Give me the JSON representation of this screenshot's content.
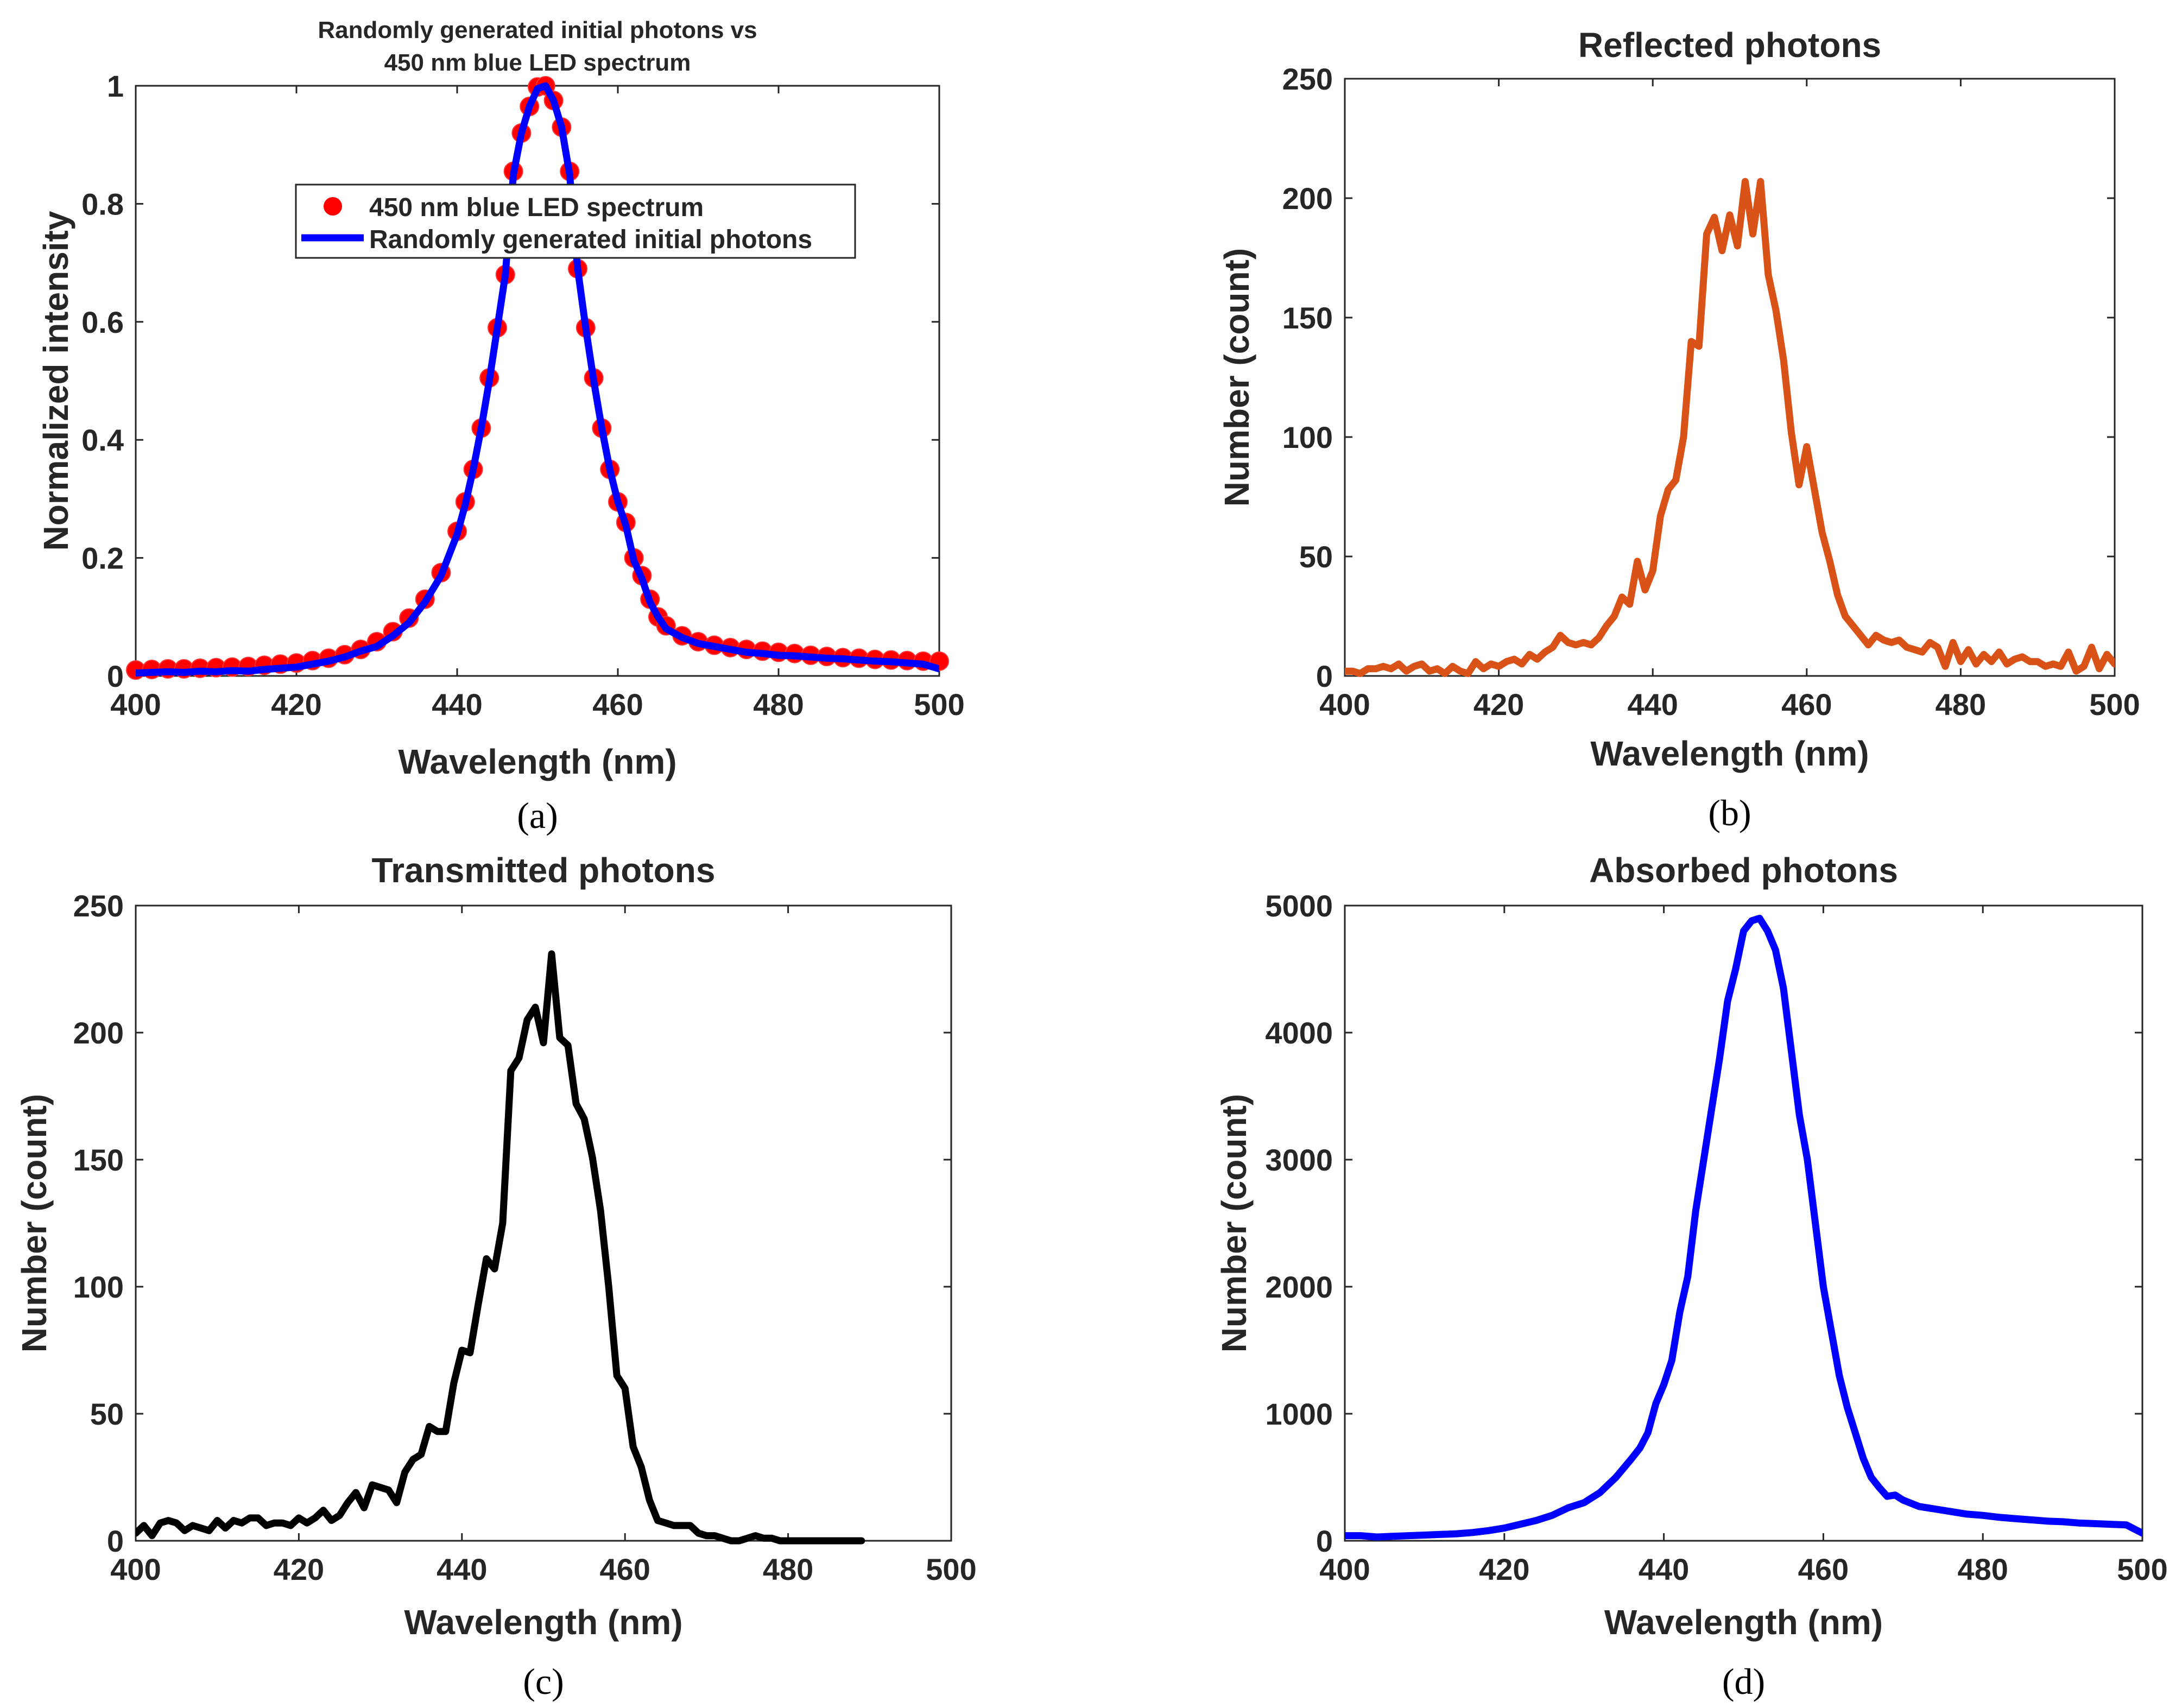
{
  "chart_data": [
    {
      "panel": "(a)",
      "type": "line",
      "title_line1": "Randomly generated initial photons vs",
      "title_line2": "450 nm blue LED spectrum",
      "xlabel": "Wavelength (nm)",
      "ylabel": "Normalized intensity",
      "xlim": [
        400,
        500
      ],
      "ylim": [
        0,
        1
      ],
      "xticks": [
        400,
        420,
        440,
        460,
        480,
        500
      ],
      "yticks": [
        0,
        0.2,
        0.4,
        0.6,
        0.8,
        1
      ],
      "ytick_labels": [
        "0",
        "0.2",
        "0.4",
        "0.6",
        "0.8",
        "1"
      ],
      "grid": false,
      "legend_position": "upper-center",
      "series": [
        {
          "name": "450 nm blue LED spectrum",
          "style": "markers",
          "color": "#ff0000",
          "x": [
            400,
            402,
            404,
            406,
            408,
            410,
            412,
            414,
            416,
            418,
            420,
            422,
            424,
            426,
            428,
            430,
            432,
            434,
            436,
            438,
            440,
            441,
            442,
            443,
            444,
            445,
            446,
            447,
            448,
            449,
            450,
            451,
            452,
            453,
            454,
            455,
            456,
            457,
            458,
            459,
            460,
            461,
            462,
            463,
            464,
            465,
            466,
            468,
            470,
            472,
            474,
            476,
            478,
            480,
            482,
            484,
            486,
            488,
            490,
            492,
            494,
            496,
            498,
            500
          ],
          "y": [
            0.01,
            0.011,
            0.012,
            0.012,
            0.013,
            0.014,
            0.015,
            0.016,
            0.018,
            0.02,
            0.022,
            0.026,
            0.03,
            0.036,
            0.045,
            0.058,
            0.075,
            0.098,
            0.13,
            0.175,
            0.245,
            0.295,
            0.35,
            0.42,
            0.505,
            0.59,
            0.68,
            0.855,
            0.92,
            0.965,
            0.998,
            1.0,
            0.975,
            0.93,
            0.855,
            0.69,
            0.59,
            0.505,
            0.42,
            0.35,
            0.295,
            0.26,
            0.2,
            0.17,
            0.13,
            0.1,
            0.085,
            0.068,
            0.058,
            0.052,
            0.048,
            0.045,
            0.042,
            0.04,
            0.038,
            0.035,
            0.033,
            0.031,
            0.03,
            0.028,
            0.027,
            0.026,
            0.025,
            0.025
          ]
        },
        {
          "name": "Randomly generated initial photons",
          "style": "line",
          "color": "#0000ff",
          "x": [
            400,
            402,
            404,
            406,
            408,
            410,
            412,
            414,
            416,
            418,
            420,
            422,
            424,
            426,
            428,
            430,
            432,
            434,
            436,
            438,
            440,
            441,
            442,
            443,
            444,
            445,
            446,
            447,
            448,
            449,
            450,
            451,
            452,
            453,
            454,
            455,
            456,
            457,
            458,
            459,
            460,
            461,
            462,
            463,
            464,
            465,
            466,
            468,
            470,
            472,
            474,
            476,
            478,
            480,
            482,
            484,
            486,
            488,
            490,
            492,
            494,
            496,
            498,
            500
          ],
          "y": [
            0.005,
            0.006,
            0.007,
            0.006,
            0.008,
            0.007,
            0.009,
            0.008,
            0.011,
            0.013,
            0.015,
            0.02,
            0.025,
            0.032,
            0.042,
            0.05,
            0.068,
            0.09,
            0.125,
            0.17,
            0.24,
            0.29,
            0.35,
            0.42,
            0.5,
            0.59,
            0.68,
            0.85,
            0.92,
            0.965,
            0.995,
            1.0,
            0.975,
            0.93,
            0.85,
            0.69,
            0.59,
            0.5,
            0.42,
            0.35,
            0.295,
            0.255,
            0.195,
            0.165,
            0.125,
            0.1,
            0.08,
            0.065,
            0.055,
            0.05,
            0.045,
            0.04,
            0.038,
            0.035,
            0.034,
            0.032,
            0.03,
            0.029,
            0.027,
            0.025,
            0.024,
            0.022,
            0.02,
            0.012
          ]
        }
      ]
    },
    {
      "panel": "(b)",
      "type": "line",
      "title": "Reflected photons",
      "xlabel": "Wavelength (nm)",
      "ylabel": "Number (count)",
      "xlim": [
        400,
        500
      ],
      "ylim": [
        0,
        250
      ],
      "xticks": [
        400,
        420,
        440,
        460,
        480,
        500
      ],
      "yticks": [
        0,
        50,
        100,
        150,
        200,
        250
      ],
      "grid": false,
      "series": [
        {
          "name": "Reflected photons",
          "color": "#d95319",
          "x": [
            400,
            401,
            402,
            403,
            404,
            405,
            406,
            407,
            408,
            409,
            410,
            411,
            412,
            413,
            414,
            415,
            416,
            417,
            418,
            419,
            420,
            421,
            422,
            423,
            424,
            425,
            426,
            427,
            428,
            429,
            430,
            431,
            432,
            433,
            434,
            435,
            436,
            437,
            438,
            439,
            440,
            441,
            442,
            443,
            444,
            445,
            446,
            447,
            448,
            449,
            450,
            451,
            452,
            453,
            454,
            455,
            456,
            457,
            458,
            459,
            460,
            461,
            462,
            463,
            464,
            465,
            466,
            467,
            468,
            469,
            470,
            471,
            472,
            473,
            474,
            475,
            476,
            477,
            478,
            479,
            480,
            481,
            482,
            483,
            484,
            485,
            486,
            487,
            488,
            489,
            490,
            491,
            492,
            493,
            494,
            495,
            496,
            497,
            498,
            499,
            500
          ],
          "y": [
            2,
            2,
            1,
            3,
            3,
            4,
            3,
            5,
            2,
            4,
            5,
            2,
            3,
            1,
            4,
            2,
            1,
            6,
            3,
            5,
            4,
            6,
            7,
            5,
            9,
            7,
            10,
            12,
            17,
            14,
            13,
            14,
            13,
            16,
            21,
            25,
            33,
            30,
            48,
            36,
            44,
            67,
            78,
            82,
            100,
            140,
            138,
            185,
            192,
            178,
            193,
            180,
            207,
            185,
            207,
            168,
            153,
            132,
            102,
            80,
            96,
            78,
            60,
            48,
            34,
            25,
            21,
            17,
            13,
            17,
            15,
            14,
            15,
            12,
            11,
            10,
            14,
            12,
            4,
            14,
            6,
            11,
            5,
            9,
            6,
            10,
            5,
            7,
            8,
            6,
            6,
            4,
            5,
            4,
            10,
            2,
            4,
            12,
            3,
            9,
            5
          ]
        }
      ]
    },
    {
      "panel": "(c)",
      "type": "line",
      "title": "Transmitted photons",
      "xlabel": "Wavelength (nm)",
      "ylabel": "Number (count)",
      "xlim": [
        400,
        500
      ],
      "ylim": [
        0,
        250
      ],
      "xticks": [
        400,
        420,
        440,
        460,
        480,
        500
      ],
      "yticks": [
        0,
        50,
        100,
        150,
        200,
        250
      ],
      "grid": false,
      "series": [
        {
          "name": "Transmitted photons",
          "color": "#000000",
          "x": [
            400,
            401,
            402,
            403,
            404,
            405,
            406,
            407,
            408,
            409,
            410,
            411,
            412,
            413,
            414,
            415,
            416,
            417,
            418,
            419,
            420,
            421,
            422,
            423,
            424,
            425,
            426,
            427,
            428,
            429,
            430,
            431,
            432,
            433,
            434,
            435,
            436,
            437,
            438,
            439,
            440,
            441,
            442,
            443,
            444,
            445,
            446,
            447,
            448,
            449,
            450,
            451,
            452,
            453,
            454,
            455,
            456,
            457,
            458,
            459,
            460,
            461,
            462,
            463,
            464,
            465,
            466,
            467,
            468,
            469,
            470,
            471,
            472,
            473,
            474,
            475,
            476,
            477,
            478,
            479,
            480,
            482,
            484,
            486,
            488,
            489
          ],
          "y": [
            3,
            6,
            2,
            7,
            8,
            7,
            4,
            6,
            5,
            4,
            8,
            5,
            8,
            7,
            9,
            9,
            6,
            7,
            7,
            6,
            9,
            7,
            9,
            12,
            8,
            10,
            15,
            19,
            13,
            22,
            21,
            20,
            15,
            27,
            32,
            34,
            45,
            43,
            43,
            62,
            75,
            74,
            93,
            111,
            107,
            125,
            185,
            190,
            205,
            210,
            196,
            231,
            198,
            195,
            172,
            166,
            151,
            130,
            100,
            65,
            60,
            37,
            29,
            16,
            8,
            7,
            6,
            6,
            6,
            3,
            2,
            2,
            1,
            0,
            0,
            1,
            2,
            1,
            1,
            0,
            0,
            0,
            0,
            0,
            0,
            0
          ]
        }
      ]
    },
    {
      "panel": "(d)",
      "type": "line",
      "title": "Absorbed photons",
      "xlabel": "Wavelength (nm)",
      "ylabel": "Number (count)",
      "xlim": [
        400,
        500
      ],
      "ylim": [
        0,
        5000
      ],
      "xticks": [
        400,
        420,
        440,
        460,
        480,
        500
      ],
      "yticks": [
        0,
        1000,
        2000,
        3000,
        4000,
        5000
      ],
      "grid": false,
      "series": [
        {
          "name": "Absorbed photons",
          "color": "#0000ff",
          "x": [
            400,
            402,
            404,
            406,
            408,
            410,
            412,
            414,
            416,
            418,
            420,
            422,
            424,
            426,
            428,
            430,
            432,
            434,
            436,
            437,
            438,
            439,
            440,
            441,
            442,
            443,
            444,
            445,
            446,
            447,
            448,
            449,
            450,
            451,
            452,
            453,
            454,
            455,
            456,
            457,
            458,
            459,
            460,
            461,
            462,
            463,
            464,
            465,
            466,
            467,
            468,
            469,
            470,
            472,
            474,
            476,
            478,
            480,
            482,
            484,
            486,
            488,
            490,
            492,
            494,
            496,
            498,
            500
          ],
          "y": [
            40,
            40,
            30,
            35,
            40,
            45,
            50,
            55,
            65,
            80,
            100,
            130,
            160,
            200,
            260,
            300,
            380,
            500,
            650,
            730,
            850,
            1080,
            1230,
            1420,
            1800,
            2080,
            2600,
            3000,
            3400,
            3800,
            4250,
            4500,
            4800,
            4880,
            4900,
            4800,
            4650,
            4350,
            3850,
            3350,
            3000,
            2500,
            2000,
            1650,
            1300,
            1050,
            850,
            650,
            500,
            420,
            350,
            360,
            320,
            270,
            250,
            230,
            210,
            200,
            185,
            175,
            165,
            155,
            150,
            140,
            135,
            130,
            125,
            60
          ]
        }
      ]
    }
  ]
}
